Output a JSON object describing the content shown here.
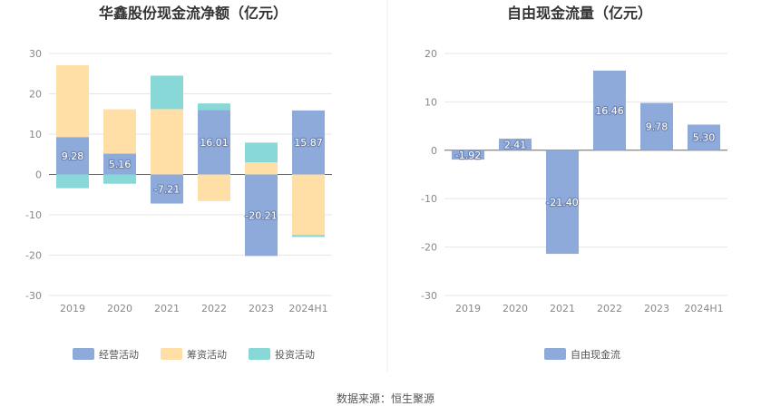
{
  "source": "数据来源：恒生聚源",
  "chart_data": [
    {
      "type": "bar",
      "stacked": true,
      "title": "华鑫股份现金流净额（亿元）",
      "categories": [
        "2019",
        "2020",
        "2021",
        "2022",
        "2023",
        "2024H1"
      ],
      "ylim": [
        -30,
        30
      ],
      "yticks": [
        30,
        20,
        10,
        0,
        -10,
        -20,
        -30
      ],
      "grid": true,
      "legend_position": "bottom",
      "series": [
        {
          "name": "经营活动",
          "color": "#8eaadb",
          "values": [
            9.28,
            5.16,
            -7.21,
            16.01,
            -20.21,
            15.87
          ],
          "labels": [
            "9.28",
            "5.16",
            "-7.21",
            "16.01",
            "-20.21",
            "15.87"
          ]
        },
        {
          "name": "筹资活动",
          "color": "#ffdfa6",
          "values": [
            17.8,
            11.0,
            16.2,
            -6.6,
            3.0,
            -15.0
          ]
        },
        {
          "name": "投资活动",
          "color": "#88d8d8",
          "values": [
            -3.4,
            -2.3,
            8.3,
            1.6,
            4.9,
            -0.5
          ]
        }
      ]
    },
    {
      "type": "bar",
      "title": "自由现金流量（亿元）",
      "categories": [
        "2019",
        "2020",
        "2021",
        "2022",
        "2023",
        "2024H1"
      ],
      "ylim": [
        -30,
        20
      ],
      "yticks": [
        20,
        10,
        0,
        -10,
        -20,
        -30
      ],
      "grid": true,
      "legend_position": "bottom",
      "series": [
        {
          "name": "自由现金流",
          "color": "#8eaadb",
          "values": [
            -1.92,
            2.41,
            -21.4,
            16.46,
            9.78,
            5.3
          ],
          "labels": [
            "-1.92",
            "2.41",
            "-21.40",
            "16.46",
            "9.78",
            "5.30"
          ]
        }
      ]
    }
  ]
}
